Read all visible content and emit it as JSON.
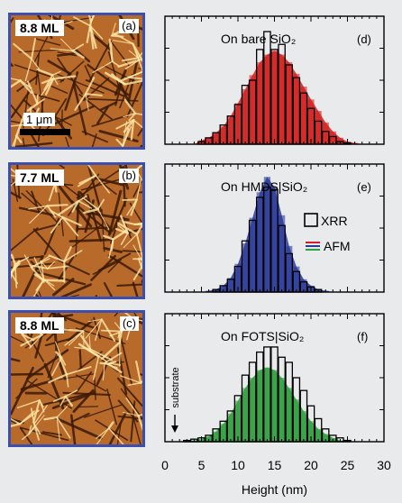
{
  "afm_panels": [
    {
      "coverage": "8.8 ML",
      "letter": "(a)",
      "scalebar": "1 μm"
    },
    {
      "coverage": "7.7 ML",
      "letter": "(b)"
    },
    {
      "coverage": "8.8 ML",
      "letter": "(c)"
    }
  ],
  "colors": {
    "afm_border": "#3a4fb0",
    "afm_low": "#3a1a06",
    "afm_mid": "#b86a2a",
    "afm_high": "#ffe9a8",
    "red": "#d42020",
    "blue": "#2a3a9a",
    "green": "#2fa040"
  },
  "chart_data": [
    {
      "type": "bar",
      "panel": "(d)",
      "title": "On bare SiO₂",
      "afm_color": "red",
      "x": [
        2,
        3,
        4,
        5,
        6,
        7,
        8,
        9,
        10,
        11,
        12,
        13,
        14,
        15,
        16,
        17,
        18,
        19,
        20,
        21,
        22,
        23,
        24,
        25,
        26,
        27,
        28
      ],
      "series": [
        {
          "name": "XRR",
          "values": [
            0,
            0,
            0,
            0.02,
            0.05,
            0.09,
            0.15,
            0.22,
            0.31,
            0.46,
            0.5,
            0.74,
            0.88,
            0.74,
            0.78,
            0.62,
            0.52,
            0.4,
            0.28,
            0.18,
            0.1,
            0.06,
            0.02,
            0.01,
            0,
            0,
            0
          ]
        },
        {
          "name": "AFM",
          "values": [
            0,
            0,
            0,
            0.03,
            0.05,
            0.09,
            0.14,
            0.22,
            0.32,
            0.43,
            0.54,
            0.64,
            0.7,
            0.73,
            0.7,
            0.64,
            0.55,
            0.45,
            0.35,
            0.26,
            0.17,
            0.1,
            0.05,
            0.02,
            0.01,
            0,
            0
          ]
        }
      ]
    },
    {
      "type": "bar",
      "panel": "(e)",
      "title": "On HMDS|SiO₂",
      "afm_color": "blue",
      "x": [
        2,
        3,
        4,
        5,
        6,
        7,
        8,
        9,
        10,
        11,
        12,
        13,
        14,
        15,
        16,
        17,
        18,
        19,
        20,
        21,
        22,
        23,
        24,
        25,
        26,
        27,
        28
      ],
      "series": [
        {
          "name": "XRR",
          "values": [
            0,
            0,
            0,
            0,
            0,
            0.02,
            0.05,
            0.1,
            0.2,
            0.4,
            0.56,
            0.74,
            0.82,
            0.8,
            0.52,
            0.3,
            0.16,
            0.08,
            0.04,
            0.02,
            0,
            0,
            0,
            0,
            0,
            0,
            0
          ]
        },
        {
          "name": "AFM",
          "values": [
            0,
            0,
            0,
            0,
            0.01,
            0.02,
            0.05,
            0.11,
            0.22,
            0.38,
            0.58,
            0.78,
            0.9,
            0.82,
            0.6,
            0.36,
            0.2,
            0.1,
            0.05,
            0.02,
            0.01,
            0,
            0,
            0,
            0,
            0,
            0
          ]
        }
      ],
      "legend": [
        "XRR",
        "AFM"
      ]
    },
    {
      "type": "bar",
      "panel": "(f)",
      "title": "On FOTS|SiO₂",
      "afm_color": "green",
      "annotation": "substrate",
      "xlabel": "Height (nm)",
      "xlim": [
        0,
        30
      ],
      "xticks": [
        0,
        5,
        10,
        15,
        20,
        25,
        30
      ],
      "x": [
        2,
        3,
        4,
        5,
        6,
        7,
        8,
        9,
        10,
        11,
        12,
        13,
        14,
        15,
        16,
        17,
        18,
        19,
        20,
        21,
        22,
        23,
        24,
        25,
        26,
        27,
        28
      ],
      "series": [
        {
          "name": "XRR",
          "values": [
            0,
            0.01,
            0.02,
            0.03,
            0.05,
            0.1,
            0.16,
            0.24,
            0.36,
            0.52,
            0.62,
            0.7,
            0.74,
            0.74,
            0.66,
            0.62,
            0.5,
            0.4,
            0.28,
            0.18,
            0.1,
            0.05,
            0.03,
            0.01,
            0,
            0,
            0
          ]
        },
        {
          "name": "AFM",
          "values": [
            0,
            0,
            0.01,
            0.02,
            0.04,
            0.08,
            0.14,
            0.22,
            0.32,
            0.42,
            0.5,
            0.56,
            0.58,
            0.56,
            0.5,
            0.42,
            0.33,
            0.24,
            0.16,
            0.1,
            0.06,
            0.03,
            0.01,
            0,
            0,
            0,
            0
          ]
        }
      ]
    }
  ]
}
